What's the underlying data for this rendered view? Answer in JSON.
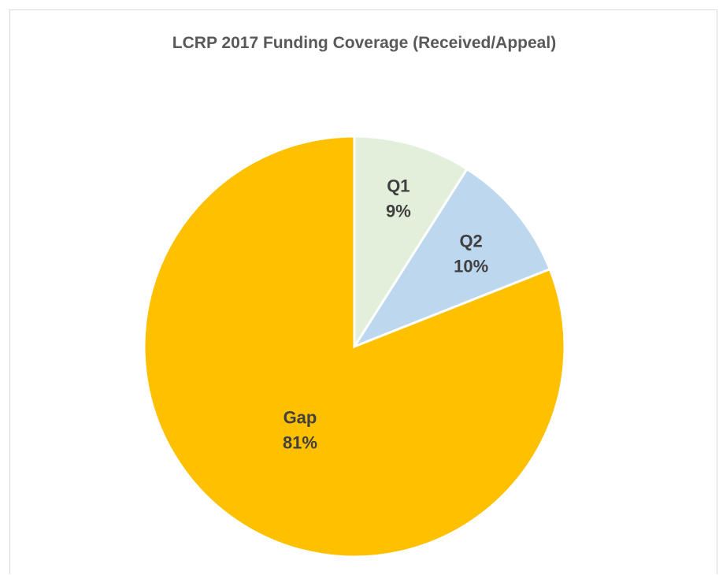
{
  "chart_data": {
    "type": "pie",
    "title": "LCRP 2017 Funding Coverage (Received/Appeal)",
    "slices": [
      {
        "label": "Q1",
        "value": 9,
        "display": "9%",
        "color": "#e2efda"
      },
      {
        "label": "Q2",
        "value": 10,
        "display": "10%",
        "color": "#bdd7ee"
      },
      {
        "label": "Gap",
        "value": 81,
        "display": "81%",
        "color": "#ffc000"
      }
    ],
    "start_angle": "12 o'clock",
    "direction": "clockwise",
    "legend": "none",
    "data_labels": "category and percentage inside slices"
  }
}
